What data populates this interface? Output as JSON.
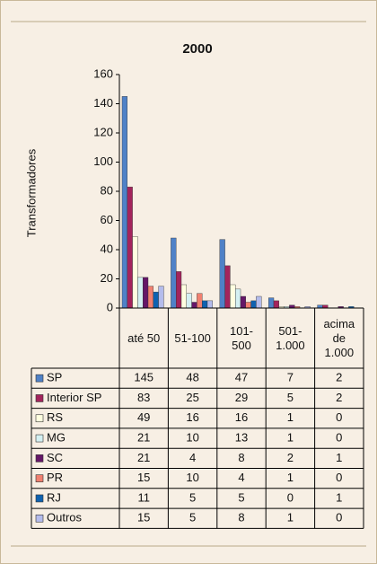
{
  "chart_data": {
    "type": "bar",
    "title": "2000",
    "y_label": "Transformadores",
    "categories": [
      "até 50",
      "51-100",
      "101-500",
      "501-1.000",
      "acima de 1.000"
    ],
    "ylim": [
      0,
      160
    ],
    "yticks": [
      0,
      20,
      40,
      60,
      80,
      100,
      120,
      140,
      160
    ],
    "series": [
      {
        "name": "SP",
        "color": "#4f81c7",
        "values": [
          145,
          48,
          47,
          7,
          2
        ]
      },
      {
        "name": "Interior SP",
        "color": "#a3245c",
        "values": [
          83,
          25,
          29,
          5,
          2
        ]
      },
      {
        "name": "RS",
        "color": "#ffffe0",
        "values": [
          49,
          16,
          16,
          1,
          0
        ]
      },
      {
        "name": "MG",
        "color": "#d4f0f2",
        "values": [
          21,
          10,
          13,
          1,
          0
        ]
      },
      {
        "name": "SC",
        "color": "#651768",
        "values": [
          21,
          4,
          8,
          2,
          1
        ]
      },
      {
        "name": "PR",
        "color": "#f08070",
        "values": [
          15,
          10,
          4,
          1,
          0
        ]
      },
      {
        "name": "RJ",
        "color": "#0f62b0",
        "values": [
          11,
          5,
          5,
          0,
          1
        ]
      },
      {
        "name": "Outros",
        "color": "#b4bcec",
        "values": [
          15,
          5,
          8,
          1,
          0
        ]
      }
    ]
  }
}
